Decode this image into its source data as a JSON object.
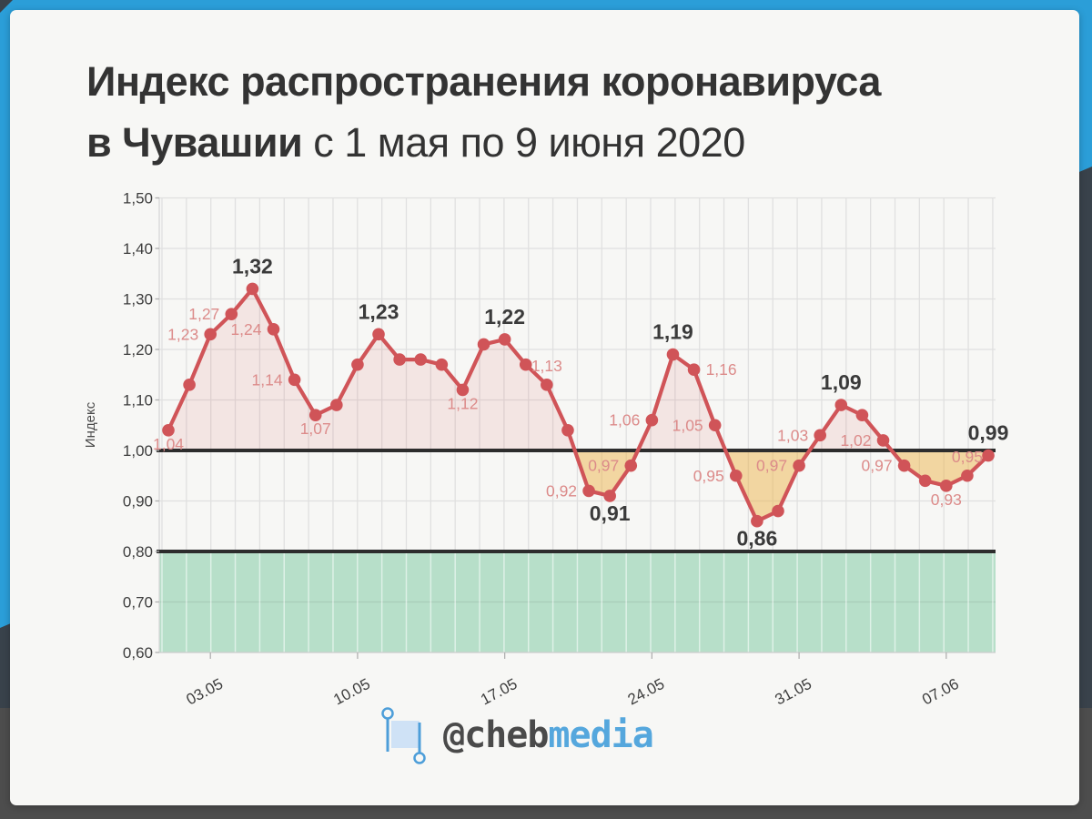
{
  "frame": {
    "bg_dark": "#4d4d4d",
    "bg_slate": "#39424b",
    "bg_blue": "#2b9ed8",
    "card_bg": "#f7f7f5"
  },
  "title": {
    "line1_bold": "Индекс распространения коронавируса",
    "line2_bold": "в Чувашии",
    "line2_regular": " с 1 мая по 9 июня 2020"
  },
  "footer": {
    "handle_gray": "@cheb",
    "handle_blue": "media",
    "flag_icon": "flag-banner-icon",
    "icon_blue": "#4d9ed9",
    "icon_fill": "#cfe2f6"
  },
  "chart_data": {
    "type": "line",
    "title": "Индекс распространения коронавируса в Чувашии с 1 мая по 9 июня 2020",
    "xlabel": "",
    "ylabel": "Индекс",
    "ylim": [
      0.6,
      1.5
    ],
    "baseline": 1.0,
    "lower_threshold": 0.8,
    "grid": true,
    "legend": "none",
    "yticks": [
      {
        "value": 1.5,
        "label": "1,50"
      },
      {
        "value": 1.4,
        "label": "1,40"
      },
      {
        "value": 1.3,
        "label": "1,30"
      },
      {
        "value": 1.2,
        "label": "1,20"
      },
      {
        "value": 1.1,
        "label": "1,10"
      },
      {
        "value": 1.0,
        "label": "1,00"
      },
      {
        "value": 0.9,
        "label": "0,90"
      },
      {
        "value": 0.8,
        "label": "0,80"
      },
      {
        "value": 0.7,
        "label": "0,70"
      },
      {
        "value": 0.6,
        "label": "0,60"
      }
    ],
    "xticks": [
      {
        "index": 2,
        "label": "03.05"
      },
      {
        "index": 9,
        "label": "10.05"
      },
      {
        "index": 16,
        "label": "17.05"
      },
      {
        "index": 23,
        "label": "24.05"
      },
      {
        "index": 30,
        "label": "31.05"
      },
      {
        "index": 37,
        "label": "07.06"
      }
    ],
    "points": [
      {
        "date": "01.05",
        "value": 1.04,
        "label": "1,04",
        "emphasis": "light",
        "label_pos": "below"
      },
      {
        "date": "02.05",
        "value": 1.13,
        "label": null
      },
      {
        "date": "03.05",
        "value": 1.23,
        "label": "1,23",
        "emphasis": "light",
        "label_pos": "left"
      },
      {
        "date": "04.05",
        "value": 1.27,
        "label": "1,27",
        "emphasis": "light",
        "label_pos": "left"
      },
      {
        "date": "05.05",
        "value": 1.32,
        "label": "1,32",
        "emphasis": "bold",
        "label_pos": "above"
      },
      {
        "date": "06.05",
        "value": 1.24,
        "label": "1,24",
        "emphasis": "light",
        "label_pos": "left"
      },
      {
        "date": "07.05",
        "value": 1.14,
        "label": "1,14",
        "emphasis": "light",
        "label_pos": "left"
      },
      {
        "date": "08.05",
        "value": 1.07,
        "label": "1,07",
        "emphasis": "light",
        "label_pos": "below"
      },
      {
        "date": "09.05",
        "value": 1.09,
        "label": null
      },
      {
        "date": "10.05",
        "value": 1.17,
        "label": null
      },
      {
        "date": "11.05",
        "value": 1.23,
        "label": "1,23",
        "emphasis": "bold",
        "label_pos": "above"
      },
      {
        "date": "12.05",
        "value": 1.18,
        "label": null
      },
      {
        "date": "13.05",
        "value": 1.18,
        "label": null
      },
      {
        "date": "14.05",
        "value": 1.17,
        "label": null
      },
      {
        "date": "15.05",
        "value": 1.12,
        "label": "1,12",
        "emphasis": "light",
        "label_pos": "below"
      },
      {
        "date": "16.05",
        "value": 1.21,
        "label": null
      },
      {
        "date": "17.05",
        "value": 1.22,
        "label": "1,22",
        "emphasis": "bold",
        "label_pos": "above"
      },
      {
        "date": "18.05",
        "value": 1.17,
        "label": null
      },
      {
        "date": "19.05",
        "value": 1.13,
        "label": "1,13",
        "emphasis": "light",
        "label_pos": "above"
      },
      {
        "date": "20.05",
        "value": 1.04,
        "label": null
      },
      {
        "date": "21.05",
        "value": 0.92,
        "label": "0,92",
        "emphasis": "light",
        "label_pos": "left"
      },
      {
        "date": "22.05",
        "value": 0.91,
        "label": "0,91",
        "emphasis": "bold",
        "label_pos": "below"
      },
      {
        "date": "23.05",
        "value": 0.97,
        "label": "0,97",
        "emphasis": "light",
        "label_pos": "left"
      },
      {
        "date": "24.05",
        "value": 1.06,
        "label": "1,06",
        "emphasis": "light",
        "label_pos": "left"
      },
      {
        "date": "25.05",
        "value": 1.19,
        "label": "1,19",
        "emphasis": "bold",
        "label_pos": "above"
      },
      {
        "date": "26.05",
        "value": 1.16,
        "label": "1,16",
        "emphasis": "light",
        "label_pos": "right"
      },
      {
        "date": "27.05",
        "value": 1.05,
        "label": "1,05",
        "emphasis": "light",
        "label_pos": "left"
      },
      {
        "date": "28.05",
        "value": 0.95,
        "label": "0,95",
        "emphasis": "light",
        "label_pos": "left"
      },
      {
        "date": "29.05",
        "value": 0.86,
        "label": "0,86",
        "emphasis": "bold",
        "label_pos": "below"
      },
      {
        "date": "30.05",
        "value": 0.88,
        "label": null
      },
      {
        "date": "31.05",
        "value": 0.97,
        "label": "0,97",
        "emphasis": "light",
        "label_pos": "left"
      },
      {
        "date": "01.06",
        "value": 1.03,
        "label": "1,03",
        "emphasis": "light",
        "label_pos": "left"
      },
      {
        "date": "02.06",
        "value": 1.09,
        "label": "1,09",
        "emphasis": "bold",
        "label_pos": "above"
      },
      {
        "date": "03.06",
        "value": 1.07,
        "label": null
      },
      {
        "date": "04.06",
        "value": 1.02,
        "label": "1,02",
        "emphasis": "light",
        "label_pos": "left"
      },
      {
        "date": "05.06",
        "value": 0.97,
        "label": "0,97",
        "emphasis": "light",
        "label_pos": "left"
      },
      {
        "date": "06.06",
        "value": 0.94,
        "label": null
      },
      {
        "date": "07.06",
        "value": 0.93,
        "label": "0,93",
        "emphasis": "light",
        "label_pos": "below"
      },
      {
        "date": "08.06",
        "value": 0.95,
        "label": "0,95",
        "emphasis": "light",
        "label_pos": "above"
      },
      {
        "date": "09.06",
        "value": 0.99,
        "label": "0,99",
        "emphasis": "bold",
        "label_pos": "above"
      }
    ],
    "colors": {
      "line": "#d05458",
      "marker": "#d05458",
      "fill_above_baseline": "rgba(208,84,88,0.115)",
      "fill_below_baseline": "rgba(236,177,66,0.47)",
      "green_zone": "#b7dfc9",
      "reference_line": "#2d2d2d",
      "grid": "#e0e0e0",
      "grid_on_green": "rgba(255,255,255,0.55)",
      "label_light": "#dc8b8a",
      "label_bold": "#3a3a3a",
      "axis_text": "#3d3d3d"
    }
  }
}
